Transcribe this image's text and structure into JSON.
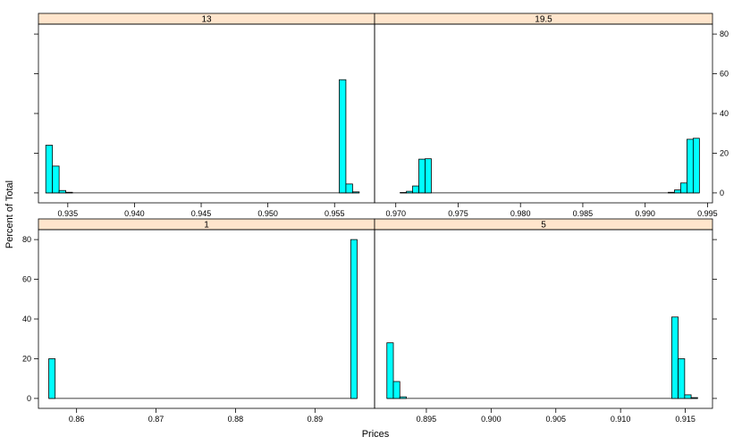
{
  "chart_data": {
    "type": "bar",
    "xlabel": "Prices",
    "ylabel": "Percent of Total",
    "y_ticks": [
      "0",
      "20",
      "40",
      "60",
      "80"
    ],
    "ylim": [
      -5,
      85
    ],
    "colors": {
      "bar_fill": "#00ffff",
      "strip": "#ffe5cc",
      "bar_stroke": "#000000"
    },
    "panels": [
      {
        "id": "13",
        "strip_label": "13",
        "xlim": [
          0.9328,
          0.958
        ],
        "x_ticks": [
          {
            "v": 0.935,
            "label": "0.935"
          },
          {
            "v": 0.94,
            "label": "0.940"
          },
          {
            "v": 0.945,
            "label": "0.945"
          },
          {
            "v": 0.95,
            "label": "0.950"
          },
          {
            "v": 0.955,
            "label": "0.955"
          }
        ],
        "bin_width": 0.0005,
        "bins": [
          {
            "x": 0.9336,
            "v": 24
          },
          {
            "x": 0.9341,
            "v": 13.5
          },
          {
            "x": 0.9346,
            "v": 1.2
          },
          {
            "x": 0.9351,
            "v": 0.3
          },
          {
            "x": 0.9556,
            "v": 57
          },
          {
            "x": 0.9561,
            "v": 4.5
          },
          {
            "x": 0.9566,
            "v": 0.5
          }
        ]
      },
      {
        "id": "19.5",
        "strip_label": "19.5",
        "xlim": [
          0.9683,
          0.9954
        ],
        "x_ticks": [
          {
            "v": 0.97,
            "label": "0.970"
          },
          {
            "v": 0.975,
            "label": "0.975"
          },
          {
            "v": 0.98,
            "label": "0.980"
          },
          {
            "v": 0.985,
            "label": "0.985"
          },
          {
            "v": 0.99,
            "label": "0.990"
          },
          {
            "v": 0.995,
            "label": "0.995"
          }
        ],
        "bin_width": 0.0005,
        "bins": [
          {
            "x": 0.9706,
            "v": 0.2
          },
          {
            "x": 0.9711,
            "v": 0.8
          },
          {
            "x": 0.9716,
            "v": 3.5
          },
          {
            "x": 0.9721,
            "v": 17
          },
          {
            "x": 0.9726,
            "v": 17.2
          },
          {
            "x": 0.9921,
            "v": 0.3
          },
          {
            "x": 0.9926,
            "v": 1.5
          },
          {
            "x": 0.9931,
            "v": 5
          },
          {
            "x": 0.9936,
            "v": 27
          },
          {
            "x": 0.9941,
            "v": 27.5
          }
        ]
      },
      {
        "id": "1",
        "strip_label": "1",
        "xlim": [
          0.8552,
          0.8975
        ],
        "x_ticks": [
          {
            "v": 0.86,
            "label": "0.86"
          },
          {
            "v": 0.87,
            "label": "0.87"
          },
          {
            "v": 0.88,
            "label": "0.88"
          },
          {
            "v": 0.89,
            "label": "0.89"
          }
        ],
        "bin_width": 0.0008,
        "bins": [
          {
            "x": 0.8569,
            "v": 20
          },
          {
            "x": 0.8949,
            "v": 80
          }
        ]
      },
      {
        "id": "5",
        "strip_label": "5",
        "xlim": [
          0.891,
          0.9171
        ],
        "x_ticks": [
          {
            "v": 0.895,
            "label": "0.895"
          },
          {
            "v": 0.9,
            "label": "0.900"
          },
          {
            "v": 0.905,
            "label": "0.905"
          },
          {
            "v": 0.91,
            "label": "0.910"
          },
          {
            "v": 0.915,
            "label": "0.915"
          }
        ],
        "bin_width": 0.0005,
        "bins": [
          {
            "x": 0.8922,
            "v": 28
          },
          {
            "x": 0.8927,
            "v": 8.5
          },
          {
            "x": 0.8932,
            "v": 0.8
          },
          {
            "x": 0.9142,
            "v": 41
          },
          {
            "x": 0.9147,
            "v": 20
          },
          {
            "x": 0.9152,
            "v": 1.8
          },
          {
            "x": 0.9157,
            "v": 0.4
          }
        ]
      }
    ]
  }
}
